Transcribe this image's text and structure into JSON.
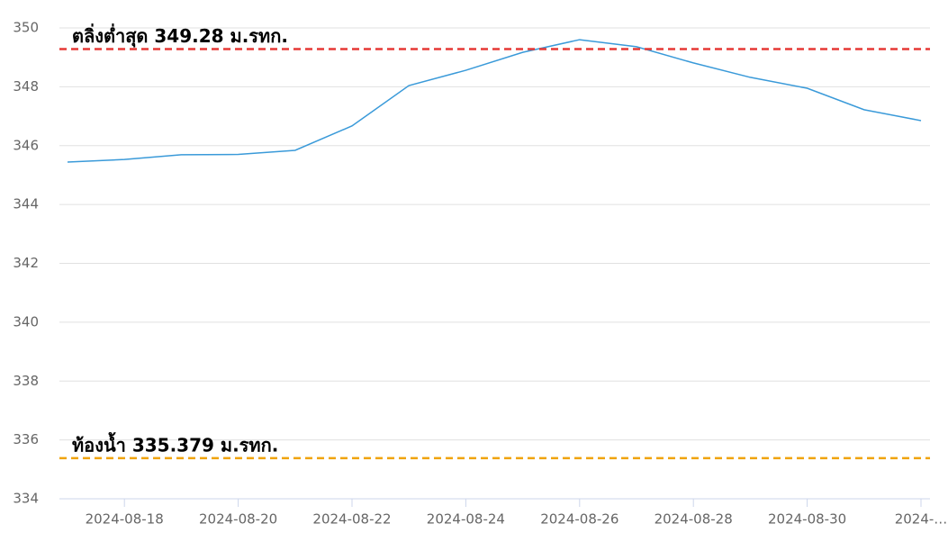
{
  "chart_data": {
    "type": "line",
    "x": [
      "2024-08-17",
      "2024-08-18",
      "2024-08-19",
      "2024-08-20",
      "2024-08-21",
      "2024-08-22",
      "2024-08-23",
      "2024-08-24",
      "2024-08-25",
      "2024-08-26",
      "2024-08-27",
      "2024-08-28",
      "2024-08-29",
      "2024-08-30",
      "2024-08-31",
      "2024-09-01"
    ],
    "series": [
      {
        "color": "#3a9ad9",
        "values": [
          345.44,
          345.53,
          345.69,
          345.7,
          345.84,
          346.67,
          348.04,
          348.56,
          349.17,
          349.6,
          349.36,
          348.81,
          348.32,
          347.95,
          347.22,
          346.85
        ]
      }
    ],
    "xticks": [
      "2024-08-18",
      "2024-08-20",
      "2024-08-22",
      "2024-08-24",
      "2024-08-26",
      "2024-08-28",
      "2024-08-30",
      {
        "value": "2024-09-01",
        "label": "2024-…"
      }
    ],
    "ylim": [
      334,
      350
    ],
    "yticks": [
      334,
      336,
      338,
      340,
      342,
      344,
      346,
      348,
      350
    ],
    "grid": true,
    "reference_lines": [
      {
        "value": 349.28,
        "label": "ตลิ่งต่ำสุด 349.28 ม.รทก.",
        "color": "#e53935"
      },
      {
        "value": 335.379,
        "label": "ท้องน้ำ 335.379 ม.รทก.",
        "color": "#f0a30a"
      }
    ]
  }
}
